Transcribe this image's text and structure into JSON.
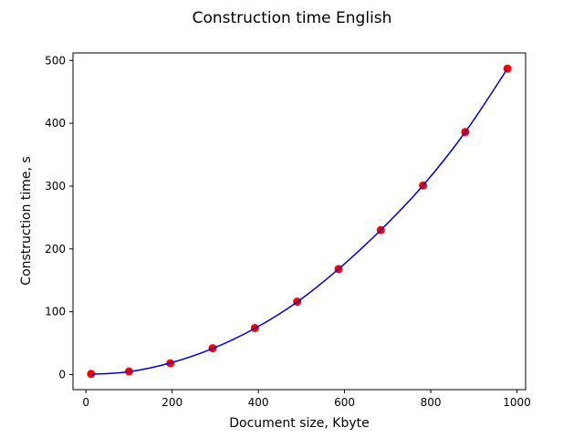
{
  "chart_data": {
    "type": "scatter",
    "title": "Construction time English",
    "xlabel": "Document size, Kbyte",
    "ylabel": "Construction time, s",
    "xlim": [
      -30,
      1020
    ],
    "ylim": [
      -24,
      512
    ],
    "xticks": [
      0,
      200,
      400,
      600,
      800,
      1000
    ],
    "yticks": [
      0,
      100,
      200,
      300,
      400,
      500
    ],
    "grid": false,
    "series": [
      {
        "kind": "points",
        "color": "#ff0000",
        "x": [
          12,
          100,
          196,
          294,
          392,
          490,
          586,
          684,
          782,
          880,
          978
        ],
        "y": [
          1,
          5,
          18,
          42,
          74,
          116,
          168,
          230,
          301,
          386,
          487
        ]
      },
      {
        "kind": "fit-curve",
        "color": "#0000cc",
        "x": [
          12,
          100,
          196,
          294,
          392,
          490,
          586,
          684,
          782,
          880,
          978
        ],
        "y": [
          0.5,
          4.5,
          18.5,
          41.5,
          73.5,
          115.5,
          168,
          230,
          301,
          386,
          487
        ]
      }
    ]
  }
}
